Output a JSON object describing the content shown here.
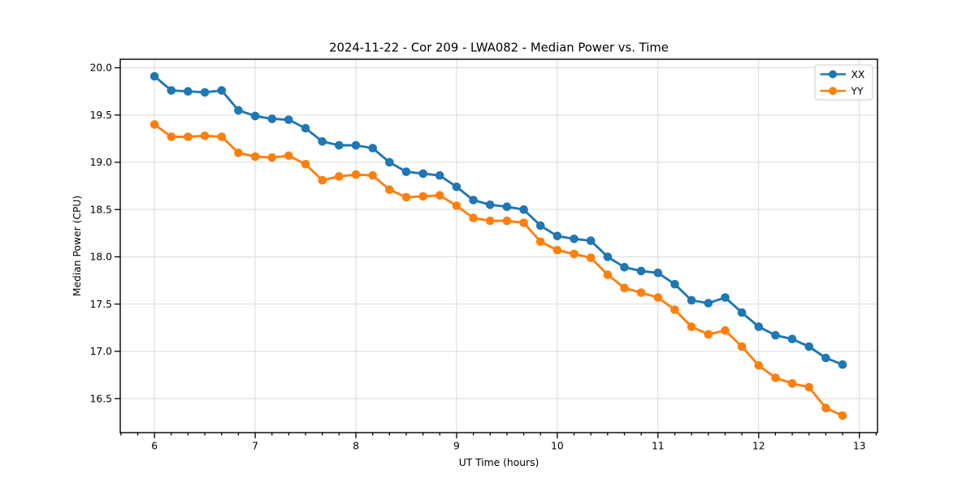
{
  "chart_data": {
    "type": "line",
    "title": "2024-11-22 - Cor 209 - LWA082 - Median Power vs. Time",
    "xlabel": "UT Time (hours)",
    "ylabel": "Median Power (CPU)",
    "xlim": [
      5.66,
      13.18
    ],
    "ylim": [
      16.14,
      20.09
    ],
    "grid": true,
    "legend_position": "upper right",
    "x_ticks": [
      6,
      7,
      8,
      9,
      10,
      11,
      12,
      13
    ],
    "x_tick_labels": [
      "6",
      "7",
      "8",
      "9",
      "10",
      "11",
      "12",
      "13"
    ],
    "x_minor_tick_step": 0.166667,
    "y_ticks": [
      16.5,
      17.0,
      17.5,
      18.0,
      18.5,
      19.0,
      19.5,
      20.0
    ],
    "y_tick_labels": [
      "16.5",
      "17.0",
      "17.5",
      "18.0",
      "18.5",
      "19.0",
      "19.5",
      "20.0"
    ],
    "x": [
      6.0,
      6.167,
      6.333,
      6.5,
      6.667,
      6.833,
      7.0,
      7.167,
      7.333,
      7.5,
      7.667,
      7.833,
      8.0,
      8.167,
      8.333,
      8.5,
      8.667,
      8.833,
      9.0,
      9.167,
      9.333,
      9.5,
      9.667,
      9.833,
      10.0,
      10.167,
      10.333,
      10.5,
      10.667,
      10.833,
      11.0,
      11.167,
      11.333,
      11.5,
      11.667,
      11.833,
      12.0,
      12.167,
      12.333,
      12.5,
      12.667,
      12.833
    ],
    "series": [
      {
        "name": "XX",
        "color": "#1f77b4",
        "values": [
          19.91,
          19.76,
          19.75,
          19.74,
          19.76,
          19.55,
          19.49,
          19.46,
          19.45,
          19.36,
          19.22,
          19.18,
          19.18,
          19.15,
          19.0,
          18.9,
          18.88,
          18.86,
          18.74,
          18.6,
          18.55,
          18.53,
          18.5,
          18.33,
          18.22,
          18.19,
          18.17,
          18.0,
          17.89,
          17.85,
          17.83,
          17.71,
          17.54,
          17.51,
          17.57,
          17.41,
          17.26,
          17.17,
          17.13,
          17.05,
          16.93,
          16.86
        ]
      },
      {
        "name": "YY",
        "color": "#ff7f0e",
        "values": [
          19.4,
          19.27,
          19.27,
          19.28,
          19.27,
          19.1,
          19.06,
          19.05,
          19.07,
          18.98,
          18.81,
          18.85,
          18.87,
          18.86,
          18.71,
          18.63,
          18.64,
          18.65,
          18.54,
          18.41,
          18.38,
          18.38,
          18.36,
          18.16,
          18.07,
          18.03,
          17.99,
          17.81,
          17.67,
          17.62,
          17.57,
          17.44,
          17.26,
          17.18,
          17.22,
          17.05,
          16.85,
          16.72,
          16.66,
          16.62,
          16.4,
          16.32
        ]
      }
    ]
  }
}
